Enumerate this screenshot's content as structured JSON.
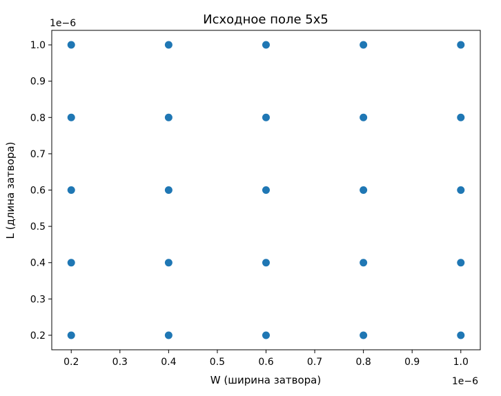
{
  "chart_data": {
    "type": "scatter",
    "title": "Исходное поле 5x5",
    "xlabel": "W (ширина затвора)",
    "ylabel": "L (длина затвора)",
    "x_offset_label": "1e−6",
    "y_offset_label": "1e−6",
    "xlim": [
      0.16,
      1.04
    ],
    "ylim": [
      0.16,
      1.04
    ],
    "x_ticks": [
      0.2,
      0.3,
      0.4,
      0.5,
      0.6,
      0.7,
      0.8,
      0.9,
      1.0
    ],
    "x_tick_labels": [
      "0.2",
      "0.3",
      "0.4",
      "0.5",
      "0.6",
      "0.7",
      "0.8",
      "0.9",
      "1.0"
    ],
    "y_ticks": [
      0.2,
      0.3,
      0.4,
      0.5,
      0.6,
      0.7,
      0.8,
      0.9,
      1.0
    ],
    "y_tick_labels": [
      "0.2",
      "0.3",
      "0.4",
      "0.5",
      "0.6",
      "0.7",
      "0.8",
      "0.9",
      "1.0"
    ],
    "grid": false,
    "marker_color": "#1f77b4",
    "points": [
      {
        "x": 0.2,
        "y": 0.2
      },
      {
        "x": 0.2,
        "y": 0.4
      },
      {
        "x": 0.2,
        "y": 0.6
      },
      {
        "x": 0.2,
        "y": 0.8
      },
      {
        "x": 0.2,
        "y": 1.0
      },
      {
        "x": 0.4,
        "y": 0.2
      },
      {
        "x": 0.4,
        "y": 0.4
      },
      {
        "x": 0.4,
        "y": 0.6
      },
      {
        "x": 0.4,
        "y": 0.8
      },
      {
        "x": 0.4,
        "y": 1.0
      },
      {
        "x": 0.6,
        "y": 0.2
      },
      {
        "x": 0.6,
        "y": 0.4
      },
      {
        "x": 0.6,
        "y": 0.6
      },
      {
        "x": 0.6,
        "y": 0.8
      },
      {
        "x": 0.6,
        "y": 1.0
      },
      {
        "x": 0.8,
        "y": 0.2
      },
      {
        "x": 0.8,
        "y": 0.4
      },
      {
        "x": 0.8,
        "y": 0.6
      },
      {
        "x": 0.8,
        "y": 0.8
      },
      {
        "x": 0.8,
        "y": 1.0
      },
      {
        "x": 1.0,
        "y": 0.2
      },
      {
        "x": 1.0,
        "y": 0.4
      },
      {
        "x": 1.0,
        "y": 0.6
      },
      {
        "x": 1.0,
        "y": 0.8
      },
      {
        "x": 1.0,
        "y": 1.0
      }
    ]
  }
}
